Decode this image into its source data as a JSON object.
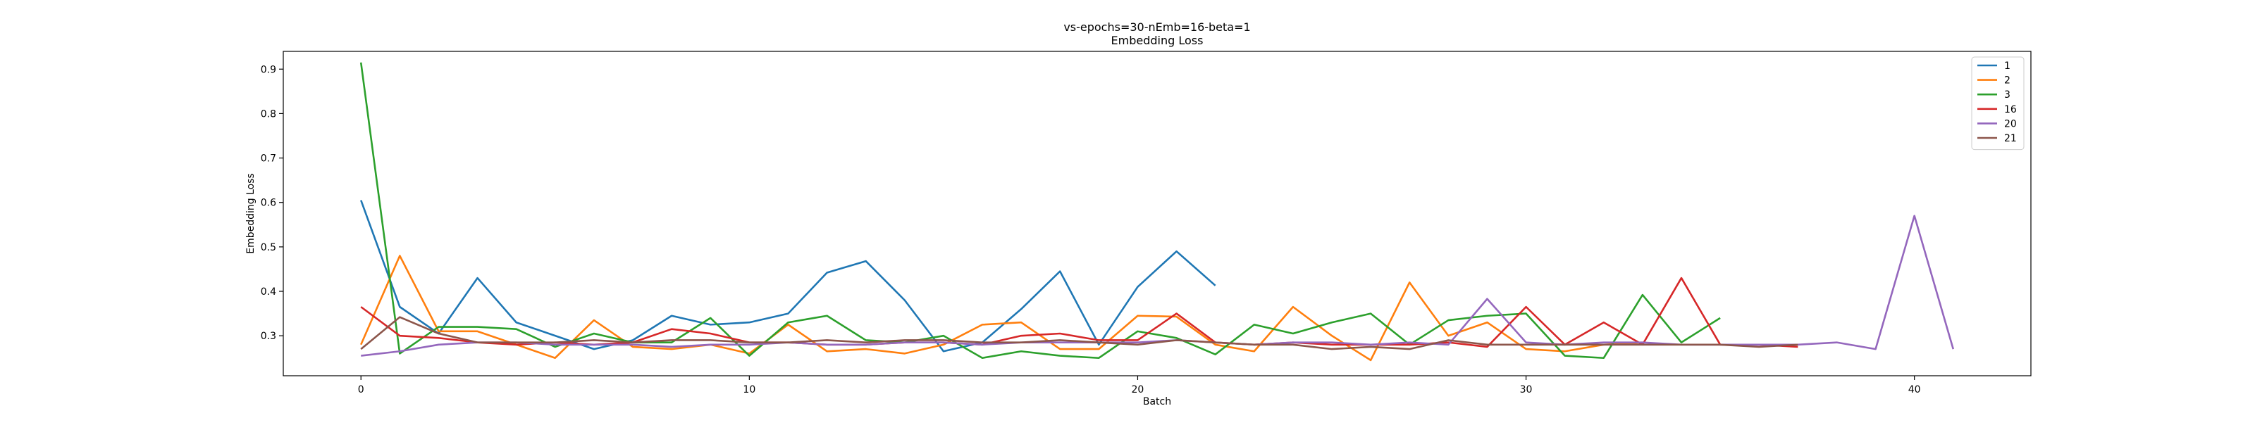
{
  "chart_data": {
    "type": "line",
    "title": "vs-epochs=30-nEmb=16-beta=1",
    "subtitle": "Embedding Loss",
    "xlabel": "Batch",
    "ylabel": "Embedding Loss",
    "xlim": [
      -2,
      43
    ],
    "ylim": [
      0.21,
      0.94
    ],
    "xticks": [
      0,
      10,
      20,
      30,
      40
    ],
    "yticks": [
      0.3,
      0.4,
      0.5,
      0.6,
      0.7,
      0.8,
      0.9
    ],
    "grid": false,
    "legend_position": "top-right",
    "series": [
      {
        "name": "1",
        "color": "#1f77b4",
        "values": [
          0.605,
          0.365,
          0.305,
          0.43,
          0.33,
          0.3,
          0.27,
          0.29,
          0.345,
          0.325,
          0.33,
          0.35,
          0.442,
          0.468,
          0.38,
          0.265,
          0.285,
          0.36,
          0.445,
          0.28,
          0.41,
          0.49,
          0.413
        ]
      },
      {
        "name": "2",
        "color": "#ff7f0e",
        "values": [
          0.28,
          0.48,
          0.31,
          0.31,
          0.28,
          0.25,
          0.335,
          0.275,
          0.27,
          0.28,
          0.26,
          0.325,
          0.265,
          0.27,
          0.26,
          0.28,
          0.325,
          0.33,
          0.27,
          0.27,
          0.345,
          0.343,
          0.28,
          0.265,
          0.365,
          0.3,
          0.245,
          0.42,
          0.3,
          0.33,
          0.27,
          0.265,
          0.28,
          0.285
        ]
      },
      {
        "name": "3",
        "color": "#2ca02c",
        "values": [
          0.915,
          0.26,
          0.32,
          0.32,
          0.315,
          0.275,
          0.305,
          0.285,
          0.285,
          0.34,
          0.255,
          0.33,
          0.345,
          0.29,
          0.285,
          0.3,
          0.25,
          0.265,
          0.255,
          0.25,
          0.31,
          0.295,
          0.258,
          0.325,
          0.305,
          0.33,
          0.35,
          0.28,
          0.335,
          0.345,
          0.35,
          0.255,
          0.25,
          0.392,
          0.285,
          0.34
        ]
      },
      {
        "name": "16",
        "color": "#d62728",
        "values": [
          0.365,
          0.3,
          0.295,
          0.285,
          0.28,
          0.285,
          0.28,
          0.285,
          0.315,
          0.305,
          0.285,
          0.285,
          0.28,
          0.28,
          0.285,
          0.285,
          0.28,
          0.3,
          0.305,
          0.29,
          0.29,
          0.35,
          0.285,
          0.28,
          0.285,
          0.28,
          0.28,
          0.28,
          0.285,
          0.275,
          0.365,
          0.28,
          0.33,
          0.28,
          0.43,
          0.28,
          0.28,
          0.275
        ]
      },
      {
        "name": "20",
        "color": "#9467bd",
        "values": [
          0.255,
          0.265,
          0.28,
          0.285,
          0.285,
          0.28,
          0.28,
          0.28,
          0.275,
          0.28,
          0.28,
          0.285,
          0.28,
          0.28,
          0.285,
          0.285,
          0.28,
          0.285,
          0.285,
          0.285,
          0.285,
          0.29,
          0.285,
          0.28,
          0.285,
          0.285,
          0.28,
          0.285,
          0.28,
          0.383,
          0.285,
          0.28,
          0.285,
          0.285,
          0.28,
          0.28,
          0.28,
          0.28,
          0.285,
          0.27,
          0.57,
          0.27
        ]
      },
      {
        "name": "21",
        "color": "#8c564b",
        "values": [
          0.27,
          0.342,
          0.305,
          0.285,
          0.285,
          0.285,
          0.29,
          0.285,
          0.29,
          0.29,
          0.285,
          0.285,
          0.29,
          0.285,
          0.29,
          0.29,
          0.285,
          0.285,
          0.29,
          0.285,
          0.28,
          0.29,
          0.285,
          0.28,
          0.28,
          0.27,
          0.275,
          0.27,
          0.29,
          0.28,
          0.28,
          0.28,
          0.28,
          0.28,
          0.28,
          0.28,
          0.275,
          0.28
        ]
      }
    ]
  }
}
